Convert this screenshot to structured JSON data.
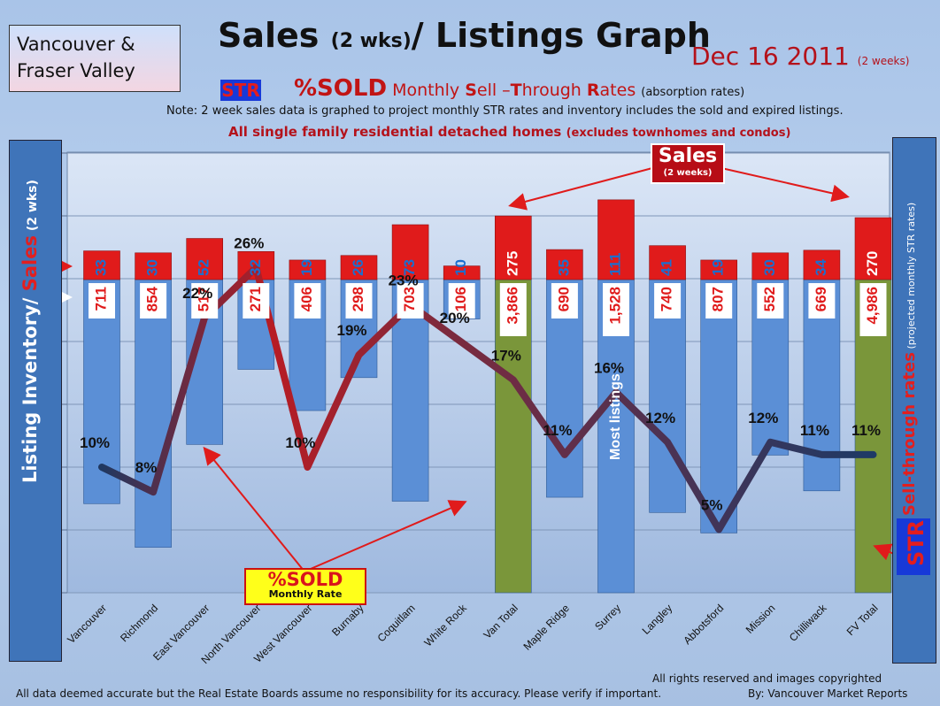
{
  "header": {
    "region_line1": "Vancouver &",
    "region_line2": "Fraser Valley",
    "title_a": "Sales ",
    "title_b": "(2 wks)",
    "title_c": "/ Listings Graph",
    "date": "Dec 16 2011",
    "date_note": "(2 weeks)",
    "str_badge": "STR",
    "str_big": "%SOLD",
    "str_mid_1": " Monthly ",
    "str_mid_S": "S",
    "str_mid_2": "ell –",
    "str_mid_T": "T",
    "str_mid_3": "hrough ",
    "str_mid_R": "R",
    "str_mid_4": "ates ",
    "str_note": "(absorption rates)",
    "note": "Note: 2 week sales data is graphed to project monthly STR rates and inventory includes the sold and expired listings.",
    "subtitle": "All single family residential detached homes ",
    "subtitle_note": "(excludes townhomes and condos)"
  },
  "left_axis": {
    "part1": "Listing Inventory",
    "part2": "/ ",
    "part3": "Sales",
    "part4": " (2 wks)"
  },
  "right_axis": {
    "badge": "STR",
    "part1": "Sell-through rates",
    "part2": " (projected monthly STR rates)"
  },
  "callouts": {
    "sales_label": "Sales",
    "sales_sub": "(2 weeks)",
    "sold_label": "%SOLD",
    "sold_sub": "Monthly Rate",
    "most_listings": "Most listings"
  },
  "footer": {
    "rights": "All rights reserved and  images copyrighted",
    "disclaimer": "All data deemed accurate but the Real Estate Boards assume no responsibility for its accuracy.  Please verify if important.",
    "byline": "By: Vancouver Market Reports"
  },
  "colors": {
    "sales": "#e01b1b",
    "listings": "#5b8fd6",
    "total_listings": "#7a963a",
    "str_line": "#203860"
  },
  "chart_data": {
    "type": "bar",
    "categories": [
      "Vancouver",
      "Richmond",
      "East Vancouver",
      "North Vancouver",
      "West Vancouver",
      "Burnaby",
      "Coquitlam",
      "White Rock",
      "Van Total",
      "Maple Ridge",
      "Surrey",
      "Langley",
      "Abbotsford",
      "Mission",
      "Chilliwack",
      "FV Total"
    ],
    "series": [
      {
        "name": "Sales",
        "values": [
          33,
          30,
          52,
          32,
          19,
          26,
          73,
          10,
          275,
          35,
          111,
          41,
          19,
          30,
          34,
          270
        ]
      },
      {
        "name": "Listing Inventory",
        "values": [
          711,
          854,
          517,
          271,
          406,
          298,
          703,
          106,
          3866,
          690,
          1528,
          740,
          807,
          552,
          669,
          4986
        ]
      },
      {
        "name": "%SOLD Monthly Rate",
        "values": [
          10,
          8,
          22,
          26,
          10,
          19,
          23,
          20,
          17,
          11,
          16,
          12,
          5,
          12,
          11,
          11
        ]
      }
    ],
    "str_labels": [
      "10%",
      "8%",
      "22%",
      "26%",
      "10%",
      "19%",
      "23%",
      "20%",
      "17%",
      "11%",
      "16%",
      "12%",
      "5%",
      "12%",
      "11%",
      "11%"
    ],
    "totals": [
      "Van Total",
      "FV Total"
    ],
    "grid": true,
    "legend": "none"
  }
}
